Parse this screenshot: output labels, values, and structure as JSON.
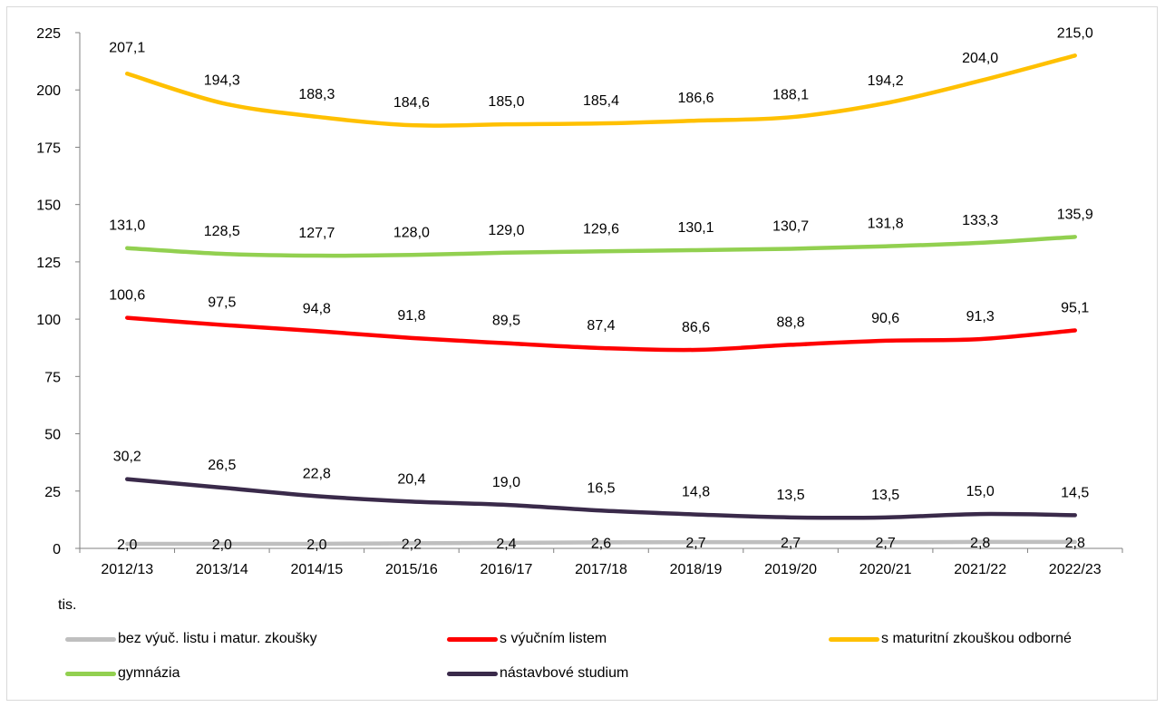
{
  "chart_data": {
    "type": "line",
    "categories": [
      "2012/13",
      "2013/14",
      "2014/15",
      "2015/16",
      "2016/17",
      "2017/18",
      "2018/19",
      "2019/20",
      "2020/21",
      "2021/22",
      "2022/23"
    ],
    "ylim": [
      0,
      225
    ],
    "yticks": [
      "0",
      "25",
      "50",
      "75",
      "100",
      "125",
      "150",
      "175",
      "200",
      "225"
    ],
    "unit_label": "tis.",
    "grid": false,
    "legend_position": "bottom",
    "series": [
      {
        "name": "bez výuč. listu i matur. zkoušky",
        "color": "#bfbfbf",
        "values": [
          2.0,
          2.0,
          2.0,
          2.2,
          2.4,
          2.6,
          2.7,
          2.7,
          2.7,
          2.8,
          2.8
        ],
        "labels": [
          "2,0",
          "2,0",
          "2,0",
          "2,2",
          "2,4",
          "2,6",
          "2,7",
          "2,7",
          "2,7",
          "2,8",
          "2,8"
        ]
      },
      {
        "name": "s výučním listem",
        "color": "#ff0000",
        "values": [
          100.6,
          97.5,
          94.8,
          91.8,
          89.5,
          87.4,
          86.6,
          88.8,
          90.6,
          91.3,
          95.1
        ],
        "labels": [
          "100,6",
          "97,5",
          "94,8",
          "91,8",
          "89,5",
          "87,4",
          "86,6",
          "88,8",
          "90,6",
          "91,3",
          "95,1"
        ]
      },
      {
        "name": "s maturitní zkouškou odborné",
        "color": "#ffc000",
        "values": [
          207.1,
          194.3,
          188.3,
          184.6,
          185.0,
          185.4,
          186.6,
          188.1,
          194.2,
          204.0,
          215.0
        ],
        "labels": [
          "207,1",
          "194,3",
          "188,3",
          "184,6",
          "185,0",
          "185,4",
          "186,6",
          "188,1",
          "194,2",
          "204,0",
          "215,0"
        ]
      },
      {
        "name": "gymnázia",
        "color": "#92d050",
        "values": [
          131.0,
          128.5,
          127.7,
          128.0,
          129.0,
          129.6,
          130.1,
          130.7,
          131.8,
          133.3,
          135.9
        ],
        "labels": [
          "131,0",
          "128,5",
          "127,7",
          "128,0",
          "129,0",
          "129,6",
          "130,1",
          "130,7",
          "131,8",
          "133,3",
          "135,9"
        ]
      },
      {
        "name": "nástavbové studium",
        "color": "#3a2a4a",
        "values": [
          30.2,
          26.5,
          22.8,
          20.4,
          19.0,
          16.5,
          14.8,
          13.5,
          13.5,
          15.0,
          14.5
        ],
        "labels": [
          "30,2",
          "26,5",
          "22,8",
          "20,4",
          "19,0",
          "16,5",
          "14,8",
          "13,5",
          "13,5",
          "15,0",
          "14,5"
        ]
      }
    ]
  }
}
